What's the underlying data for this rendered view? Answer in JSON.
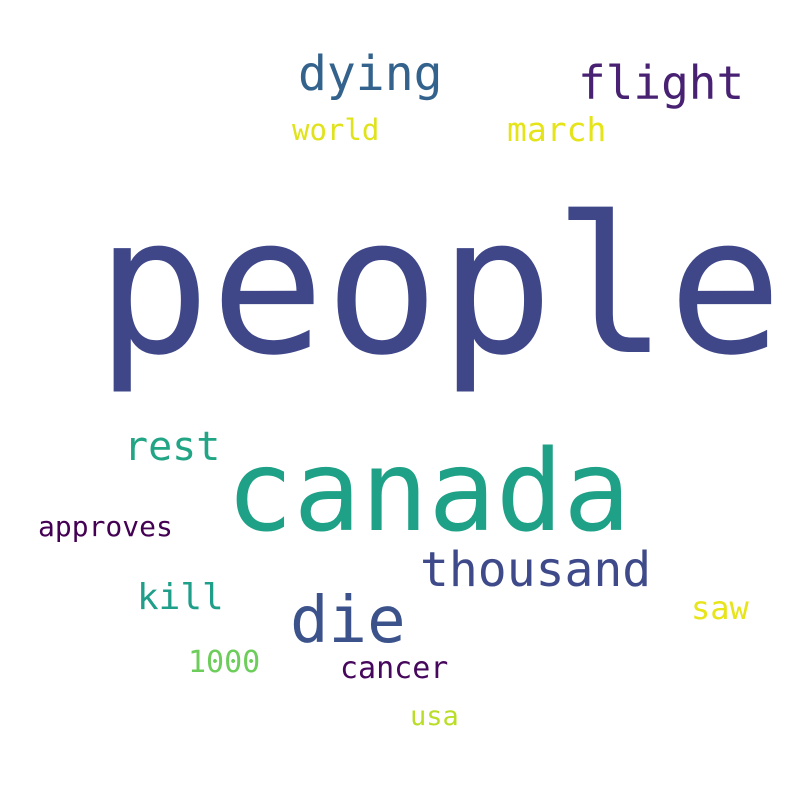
{
  "words": [
    {
      "id": "people",
      "text": "people",
      "color": "#3f4789"
    },
    {
      "id": "canada",
      "text": "canada",
      "color": "#1fa187"
    },
    {
      "id": "dying",
      "text": "dying",
      "color": "#33638d"
    },
    {
      "id": "flight",
      "text": "flight",
      "color": "#482173"
    },
    {
      "id": "world",
      "text": "world",
      "color": "#e0e31c"
    },
    {
      "id": "march",
      "text": "march",
      "color": "#e5e419"
    },
    {
      "id": "rest",
      "text": "rest",
      "color": "#21a585"
    },
    {
      "id": "approves",
      "text": "approves",
      "color": "#440154"
    },
    {
      "id": "thousand",
      "text": "thousand",
      "color": "#3e4a89"
    },
    {
      "id": "die",
      "text": "die",
      "color": "#3b528b"
    },
    {
      "id": "kill",
      "text": "kill",
      "color": "#1f9e89"
    },
    {
      "id": "saw",
      "text": "saw",
      "color": "#e7e419"
    },
    {
      "id": "1000",
      "text": "1000",
      "color": "#6ccd5a"
    },
    {
      "id": "cancer",
      "text": "cancer",
      "color": "#46085c"
    },
    {
      "id": "usa",
      "text": "usa",
      "color": "#bade28"
    }
  ]
}
